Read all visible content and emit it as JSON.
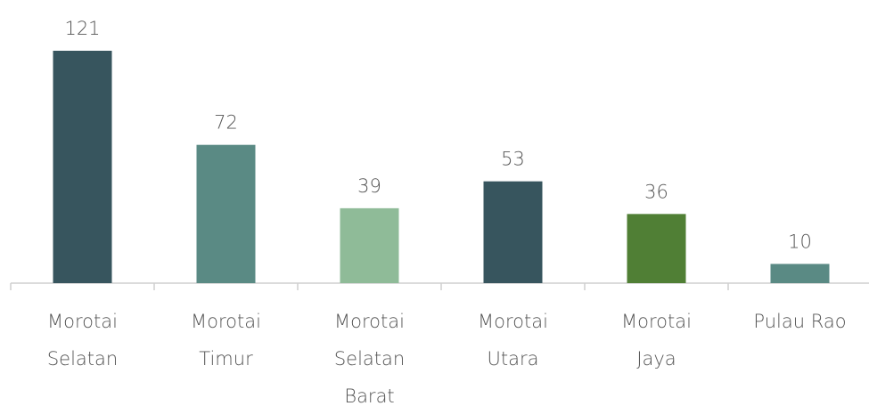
{
  "chart_data": {
    "type": "bar",
    "categories": [
      [
        "Morotai",
        "Selatan"
      ],
      [
        "Morotai",
        "Timur"
      ],
      [
        "Morotai",
        "Selatan",
        "Barat"
      ],
      [
        "Morotai",
        "Utara"
      ],
      [
        "Morotai",
        "Jaya"
      ],
      [
        "Pulau Rao"
      ]
    ],
    "values": [
      121,
      72,
      39,
      53,
      36,
      10
    ],
    "colors": [
      "#37555e",
      "#5a8a84",
      "#8fbb98",
      "#37555e",
      "#507f35",
      "#5a8a84"
    ]
  }
}
